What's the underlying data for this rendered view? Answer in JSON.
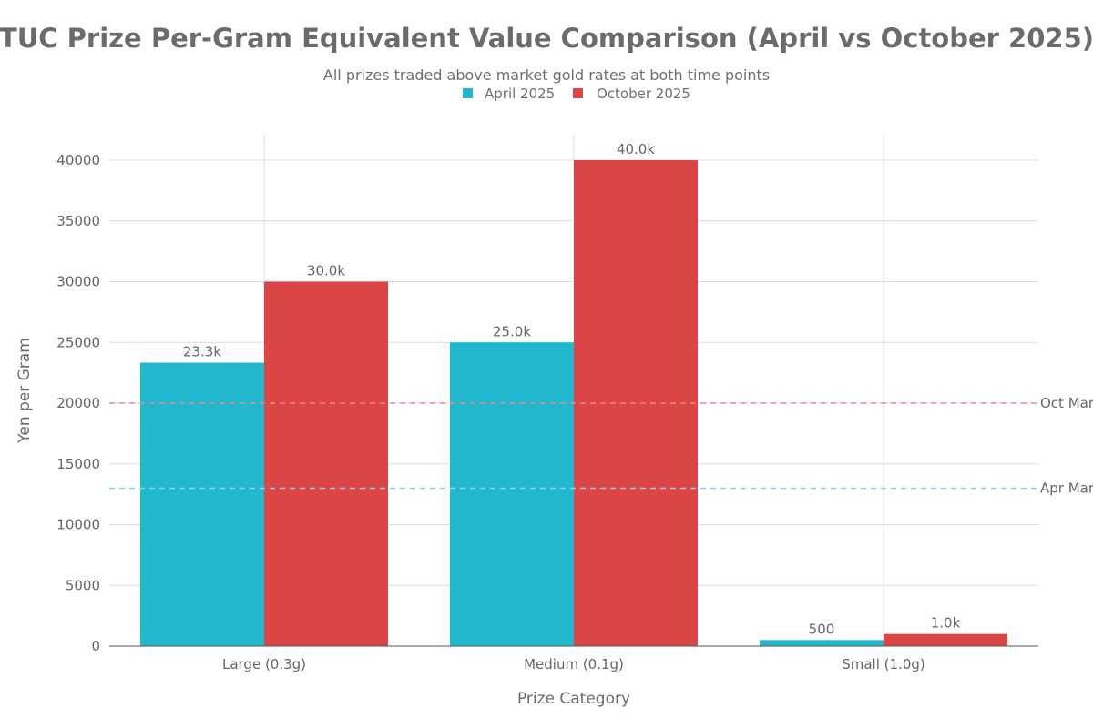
{
  "colors": {
    "april": "#21b8cd",
    "october": "#db4545",
    "oct_ref": "#e88a8a",
    "apr_ref": "#8fd0e6"
  },
  "chart_data": {
    "type": "bar",
    "title": "TUC Prize Per-Gram Equivalent Value Comparison (April vs October 2025)",
    "subtitle": "All prizes traded above market gold rates at both time points",
    "xlabel": "Prize Category",
    "ylabel": "Yen per Gram",
    "categories": [
      "Large (0.3g)",
      "Medium (0.1g)",
      "Small (1.0g)"
    ],
    "series": [
      {
        "name": "April 2025",
        "values": [
          23333,
          25000,
          500
        ],
        "labels": [
          "23.3k",
          "25.0k",
          "500"
        ]
      },
      {
        "name": "October 2025",
        "values": [
          30000,
          40000,
          1000
        ],
        "labels": [
          "30.0k",
          "40.0k",
          "1.0k"
        ]
      }
    ],
    "ylim": [
      0,
      42000
    ],
    "yticks": [
      0,
      5000,
      10000,
      15000,
      20000,
      25000,
      30000,
      35000,
      40000
    ],
    "ytick_labels": [
      "0",
      "5000",
      "10000",
      "15000",
      "20000",
      "25000",
      "30000",
      "35000",
      "40000"
    ],
    "reference_lines": [
      {
        "value": 20000,
        "label": "Oct Mar",
        "series": "October 2025"
      },
      {
        "value": 13000,
        "label": "Apr Mar",
        "series": "April 2025"
      }
    ],
    "grid": true,
    "legend_position": "top-center"
  }
}
